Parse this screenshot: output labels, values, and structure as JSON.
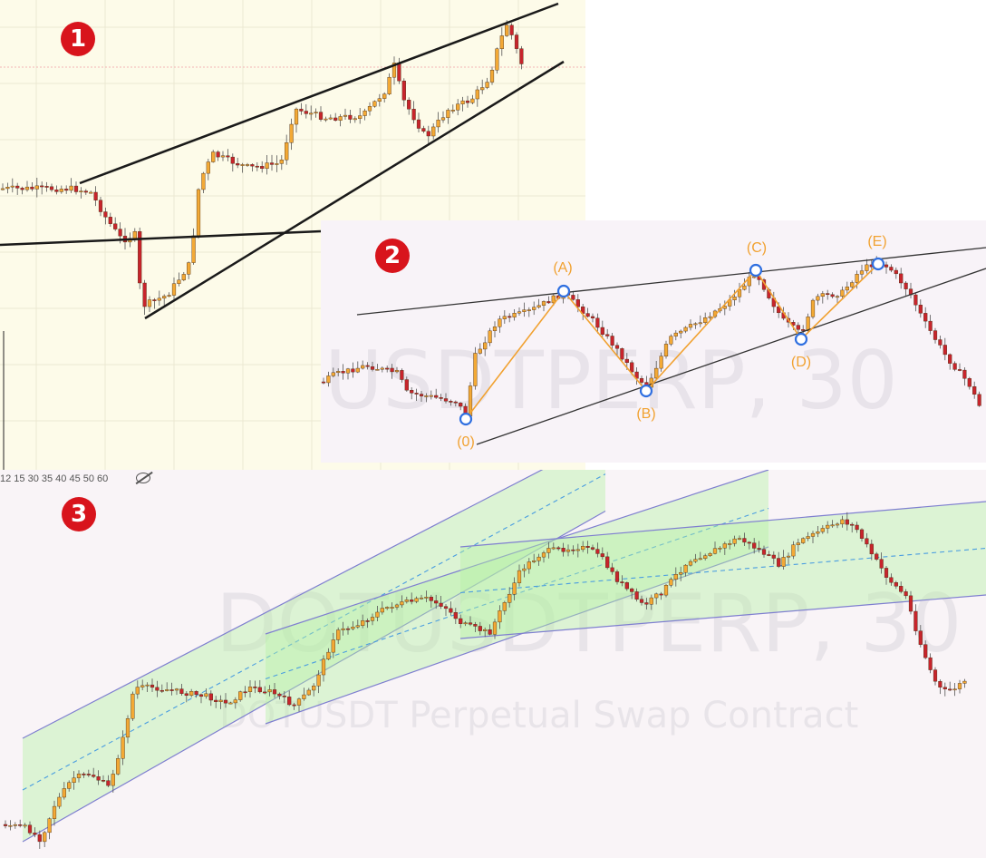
{
  "badges": {
    "one": "1",
    "two": "2",
    "three": "3"
  },
  "panel2": {
    "watermark": "USDTPERP, 30",
    "labels": {
      "p0": "(0)",
      "pA": "(A)",
      "pB": "(B)",
      "pC": "(C)",
      "pD": "(D)",
      "pE": "(E)"
    }
  },
  "panel3": {
    "toolbar": "12 15 30 35 40 45 50 60",
    "toolbar_icon": "eye-hidden-icon",
    "watermark_main": "DOTUSDTPERP, 30",
    "watermark_sub": "DOTUSDT Perpetual Swap Contract"
  },
  "colors": {
    "up": "#f3a935",
    "down": "#c8242c",
    "trend": "#1a1a1a",
    "wave": "#f1a232",
    "pivot": "#2f6fe0",
    "channel": "#7f7fd0",
    "fill": "#b5f0a5"
  },
  "chart_data": [
    {
      "type": "candlestick",
      "title": "",
      "trendlines": "rising wedge with lower horizontal support line"
    },
    {
      "type": "candlestick",
      "title": "",
      "pattern_points": [
        "(0)",
        "(A)",
        "(B)",
        "(C)",
        "(D)",
        "(E)"
      ],
      "trendlines": "converging upper and lower trendlines"
    },
    {
      "type": "candlestick",
      "title": "",
      "channels": "three overlapping parallel regression channels with dashed midlines"
    }
  ]
}
